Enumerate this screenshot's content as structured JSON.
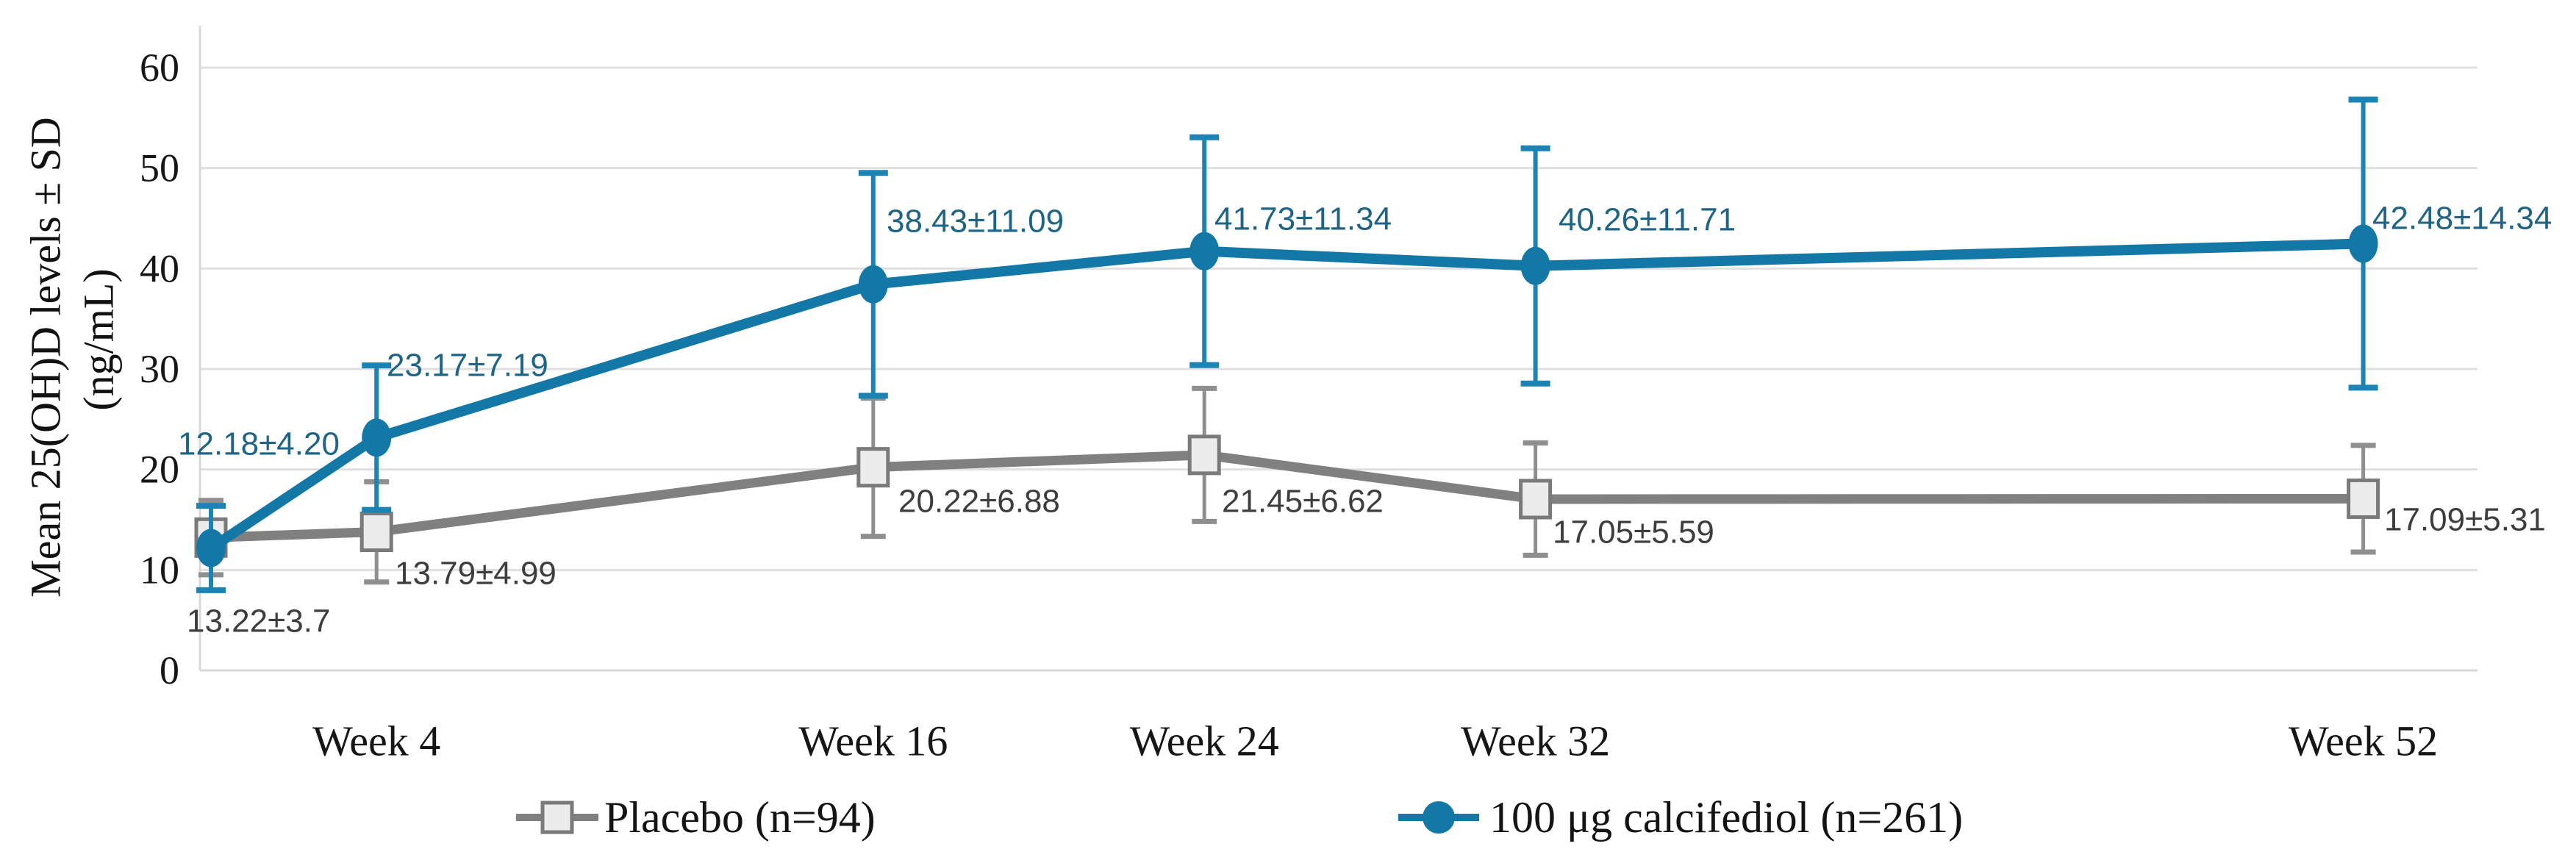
{
  "chart_data": {
    "type": "line",
    "title": "",
    "ylabel_line1": "Mean 25(OH)D levels ± SD",
    "ylabel_line2": "(ng/mL)",
    "ylim": [
      0,
      60
    ],
    "ytick_step": 10,
    "ytick_labels": [
      "0",
      "10",
      "20",
      "30",
      "40",
      "50",
      "60"
    ],
    "x_unit": "weeks",
    "x_tick_weeks": [
      4,
      16,
      24,
      32,
      52
    ],
    "x_tick_labels": [
      "Week 4",
      "Week 16",
      "Week 24",
      "Week 32",
      "Week 52"
    ],
    "grid": "horizontal",
    "legend_position": "bottom",
    "series": [
      {
        "name": "Placebo (n=94)",
        "marker": "square",
        "line_color": "#808080",
        "error_color": "#8f8f8f",
        "marker_fill": "#ececec",
        "marker_stroke": "#7a7a7a",
        "label_color": "#3d3d3d",
        "weeks": [
          0,
          4,
          16,
          24,
          32,
          52
        ],
        "values": [
          13.22,
          13.79,
          20.22,
          21.45,
          17.05,
          17.09
        ],
        "sd": [
          3.7,
          4.99,
          6.88,
          6.62,
          5.59,
          5.31
        ],
        "point_labels": [
          "13.22±3.7",
          "13.79±4.99",
          "20.22±6.88",
          "21.45±6.62",
          "17.05±5.59",
          "17.09±5.31"
        ]
      },
      {
        "name": "100 μg calcifediol (n=261)",
        "marker": "circle",
        "line_color": "#1478a7",
        "error_color": "#1c84b4",
        "marker_fill": "#1478a7",
        "marker_stroke": "#1478a7",
        "label_color": "#1d6486",
        "weeks": [
          0,
          4,
          16,
          24,
          32,
          52
        ],
        "values": [
          12.18,
          23.17,
          38.43,
          41.73,
          40.26,
          42.48
        ],
        "sd": [
          4.2,
          7.19,
          11.09,
          11.34,
          11.71,
          14.34
        ],
        "point_labels": [
          "12.18±4.20",
          "23.17±7.19",
          "38.43±11.09",
          "41.73±11.34",
          "40.26±11.71",
          "42.48±14.34"
        ]
      }
    ]
  }
}
